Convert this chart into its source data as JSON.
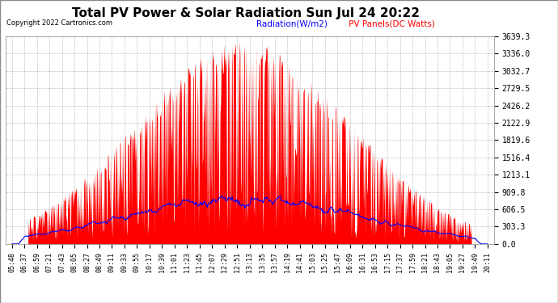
{
  "title": "Total PV Power & Solar Radiation Sun Jul 24 20:22",
  "copyright": "Copyright 2022 Cartronics.com",
  "legend_radiation": "Radiation(W/m2)",
  "legend_pv": " PV Panels(DC Watts)",
  "yticks": [
    0.0,
    303.3,
    606.5,
    909.8,
    1213.1,
    1516.4,
    1819.6,
    2122.9,
    2426.2,
    2729.5,
    3032.7,
    3336.0,
    3639.3
  ],
  "ymax": 3639.3,
  "background_color": "#ffffff",
  "plot_bg_color": "#ffffff",
  "grid_color": "#b0b0b0",
  "pv_color": "#ff0000",
  "radiation_color": "#0000ff",
  "title_fontsize": 11,
  "xtick_fontsize": 6,
  "ytick_fontsize": 7,
  "x_labels": [
    "05:48",
    "06:37",
    "06:59",
    "07:21",
    "07:43",
    "08:05",
    "08:27",
    "08:49",
    "09:11",
    "09:33",
    "09:55",
    "10:17",
    "10:39",
    "11:01",
    "11:23",
    "11:45",
    "12:07",
    "12:29",
    "12:51",
    "13:13",
    "13:35",
    "13:57",
    "14:19",
    "14:41",
    "15:03",
    "15:25",
    "15:47",
    "16:09",
    "16:31",
    "16:53",
    "17:15",
    "17:37",
    "17:59",
    "18:21",
    "18:43",
    "19:05",
    "19:27",
    "19:49",
    "20:11"
  ]
}
